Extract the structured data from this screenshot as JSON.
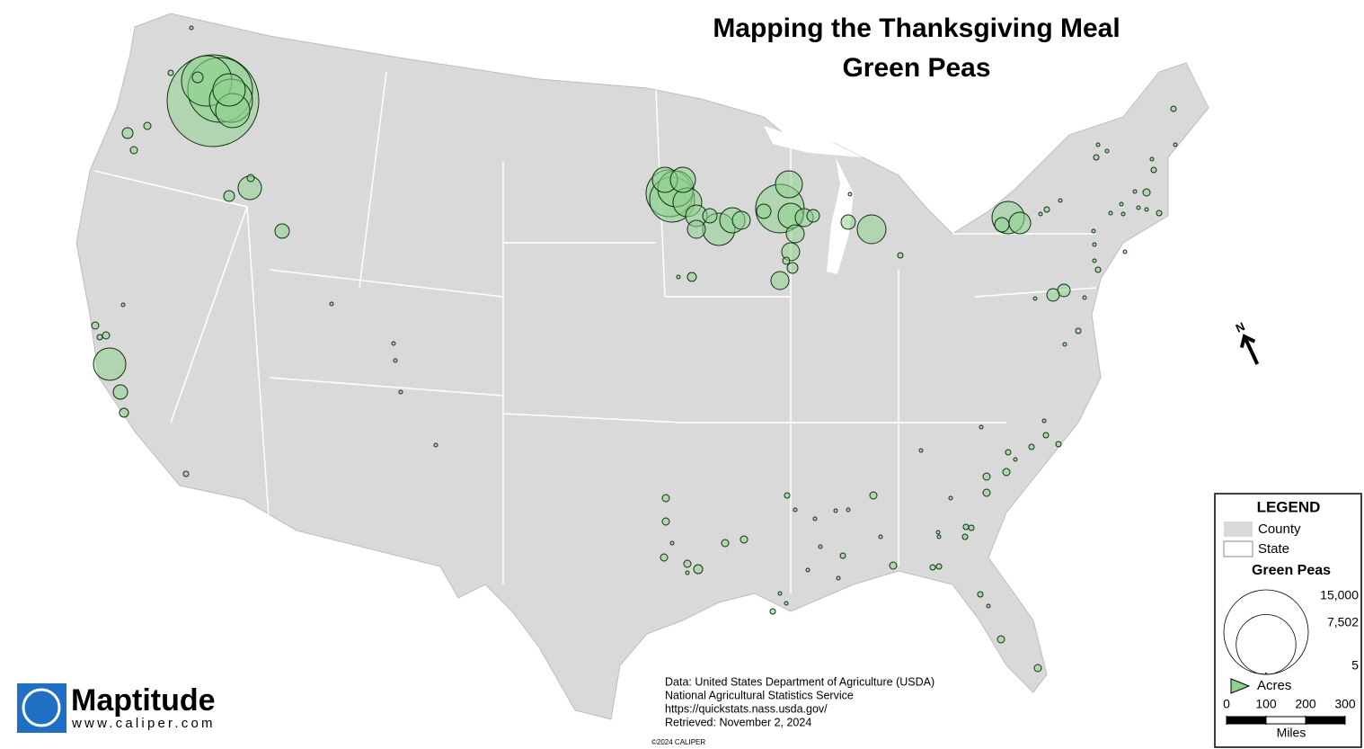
{
  "header": {
    "title": "Mapping the Thanksgiving Meal",
    "subtitle": "Green Peas"
  },
  "bubbles": {
    "color": "#8fd18f",
    "acres": [
      17660,
      8800,
      3911,
      2451,
      5323,
      244,
      2200,
      61,
      27,
      244,
      109,
      109,
      244,
      1148,
      109,
      435,
      2200,
      435,
      170,
      109,
      109,
      61,
      27,
      61,
      27,
      4590,
      2716,
      1331,
      1331,
      1738,
      978,
      2200,
      1331,
      435,
      679,
      679,
      170,
      27,
      4244,
      4950,
      1528,
      1331,
      679,
      333,
      679,
      679,
      244,
      679,
      109,
      435,
      1738,
      435,
      27,
      61,
      2200,
      435,
      978,
      61,
      27,
      27,
      27,
      61,
      27,
      61,
      27,
      61,
      27,
      27,
      109,
      27,
      27,
      61,
      27,
      27,
      27,
      27,
      27,
      27,
      27,
      61,
      27,
      61,
      333,
      333,
      27,
      27,
      27,
      27,
      61,
      61,
      61,
      61,
      27,
      109,
      109,
      109,
      27,
      27,
      61,
      61,
      61,
      27,
      27,
      61,
      61,
      109,
      27,
      109,
      27,
      27,
      27,
      27,
      61,
      27,
      61,
      27,
      27,
      27,
      27,
      61,
      61,
      27,
      109,
      109,
      109,
      109,
      27,
      109,
      109,
      27,
      170,
      109,
      109,
      27,
      27,
      27,
      27,
      27,
      61
    ]
  },
  "legend": {
    "title": "LEGEND",
    "items": [
      "County",
      "State"
    ],
    "symbol_title": "Green Peas",
    "sizes": [
      {
        "value": 15000,
        "label": "15,000"
      },
      {
        "value": 7502,
        "label": "7,502"
      },
      {
        "value": 5,
        "label": "5"
      }
    ],
    "unit": "Acres"
  },
  "scale_bar": {
    "ticks": [
      0,
      100,
      200,
      300
    ],
    "unit": "Miles"
  },
  "north": "N",
  "source": [
    "Data: United States Department of Agriculture (USDA)",
    "National Agricultural Statistics Service",
    "https://quickstats.nass.usda.gov/",
    "Retrieved: November 2, 2024"
  ],
  "copyright": "©2024 CALIPER",
  "logo": {
    "name": "Maptitude",
    "url": "www.caliper.com"
  }
}
